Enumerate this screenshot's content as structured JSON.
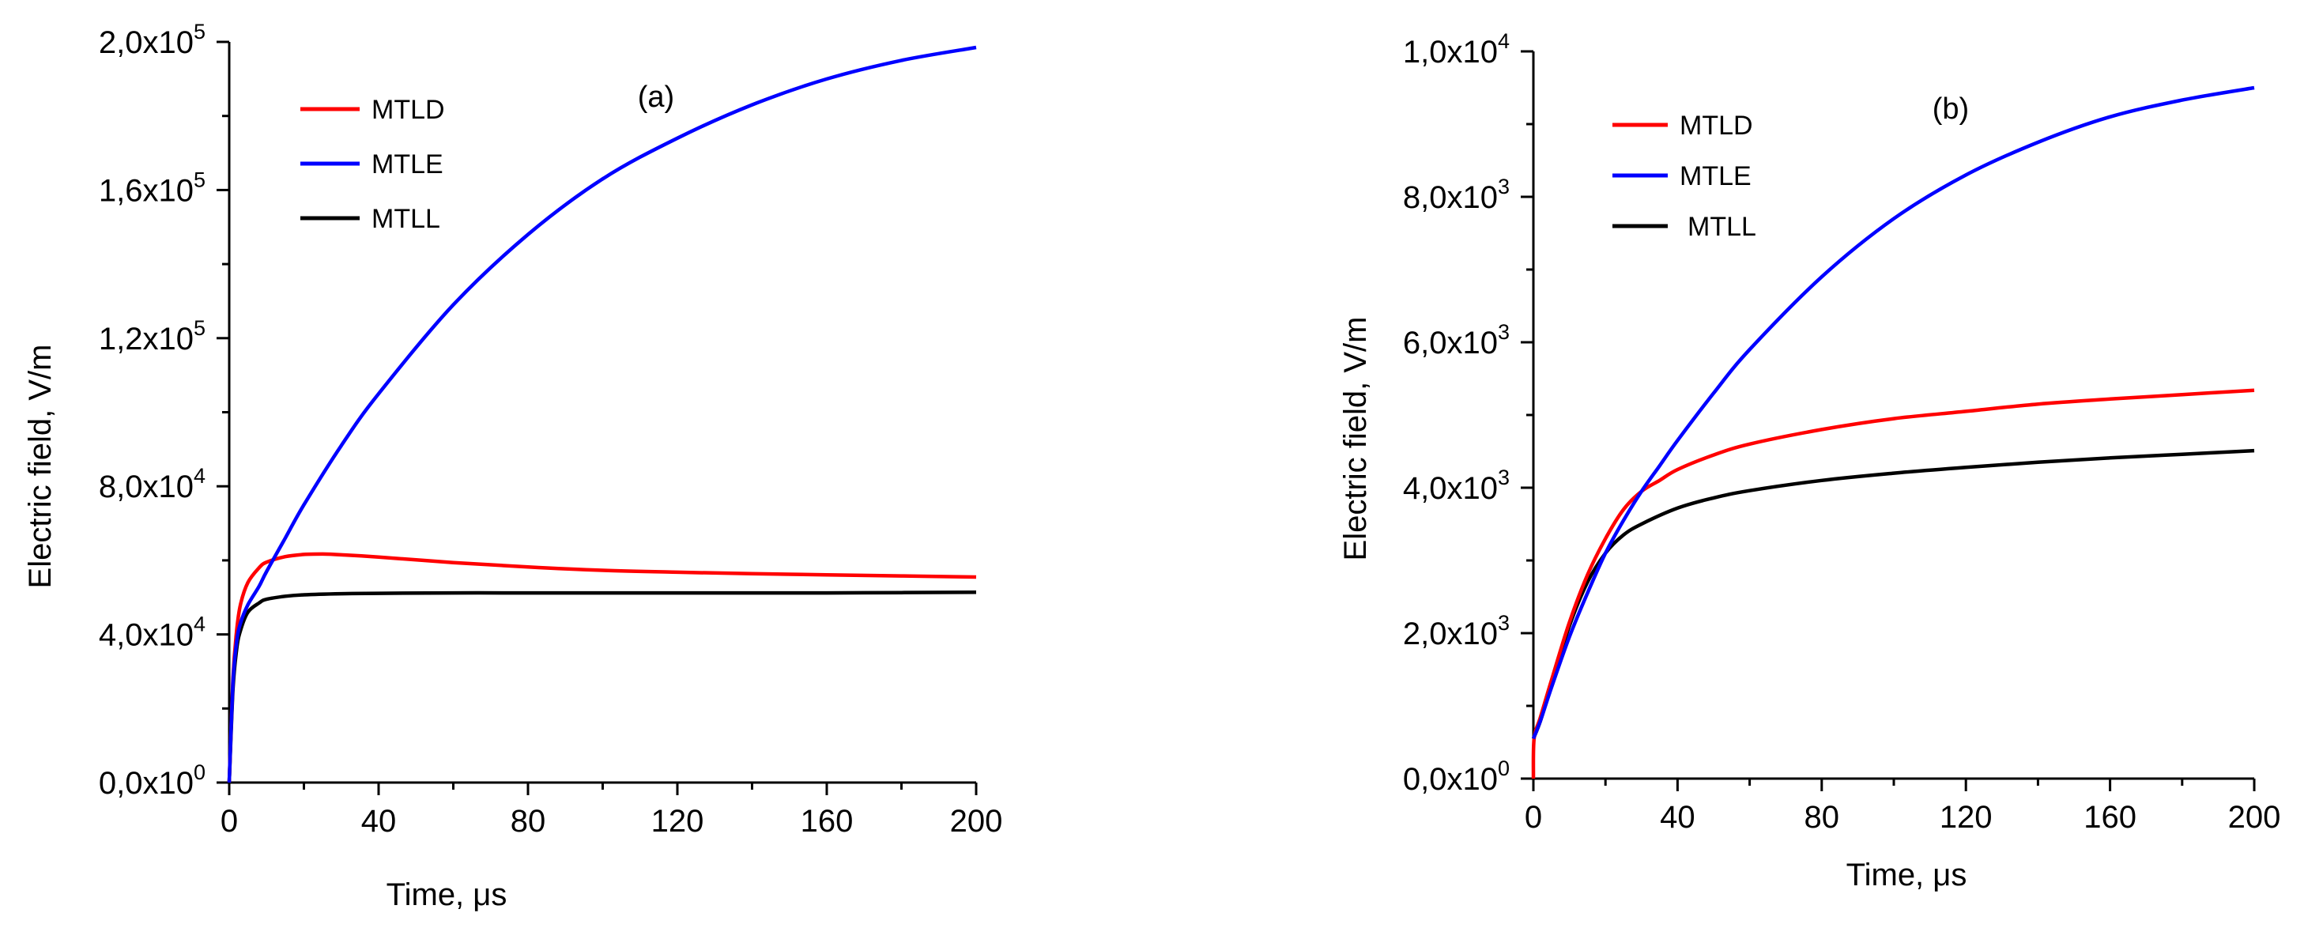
{
  "chart_data": [
    {
      "id": "a",
      "type": "line",
      "panel_label": "(a)",
      "xlabel": "Time, μs",
      "ylabel": "Electric field, V/m",
      "xlim": [
        0,
        200
      ],
      "ylim": [
        0,
        200000
      ],
      "x_ticks": [
        0,
        40,
        80,
        120,
        160,
        200
      ],
      "x_tick_labels": [
        "0",
        "40",
        "80",
        "120",
        "160",
        "200"
      ],
      "y_ticks": [
        0,
        40000,
        80000,
        120000,
        160000,
        200000
      ],
      "y_tick_labels": [
        {
          "mantissa": "0,0x10",
          "exp": "0"
        },
        {
          "mantissa": "4,0x10",
          "exp": "4"
        },
        {
          "mantissa": "8,0x10",
          "exp": "4"
        },
        {
          "mantissa": "1,2x10",
          "exp": "5"
        },
        {
          "mantissa": "1,6x10",
          "exp": "5"
        },
        {
          "mantissa": "2,0x10",
          "exp": "5"
        }
      ],
      "legend_position": "top-left",
      "series": [
        {
          "name": "MTLD",
          "color": "#ff0000",
          "x": [
            0,
            1,
            2,
            3,
            5,
            8,
            10,
            15,
            20,
            25,
            30,
            40,
            60,
            80,
            100,
            120,
            140,
            160,
            180,
            200
          ],
          "y": [
            0,
            28000,
            41000,
            48000,
            54000,
            58000,
            59500,
            61000,
            61600,
            61700,
            61500,
            60900,
            59400,
            58200,
            57300,
            56800,
            56400,
            56100,
            55800,
            55500
          ]
        },
        {
          "name": "MTLE",
          "color": "#0000ff",
          "x": [
            0,
            1,
            2,
            3,
            5,
            8,
            10,
            15,
            20,
            30,
            40,
            60,
            80,
            100,
            120,
            140,
            160,
            180,
            200
          ],
          "y": [
            0,
            27000,
            38000,
            43000,
            48000,
            53000,
            57000,
            66000,
            75000,
            91000,
            105000,
            129000,
            148000,
            163000,
            174000,
            183000,
            190000,
            195000,
            198500
          ]
        },
        {
          "name": "MTLL",
          "color": "#000000",
          "x": [
            0,
            1,
            2,
            3,
            5,
            8,
            10,
            15,
            20,
            30,
            40,
            60,
            80,
            100,
            120,
            140,
            160,
            180,
            200
          ],
          "y": [
            0,
            25000,
            36000,
            41000,
            46000,
            48500,
            49500,
            50300,
            50700,
            51000,
            51100,
            51200,
            51200,
            51200,
            51200,
            51200,
            51200,
            51300,
            51400
          ]
        }
      ]
    },
    {
      "id": "b",
      "type": "line",
      "panel_label": "(b)",
      "xlabel": "Time, μs",
      "ylabel": "Electric field, V/m",
      "xlim": [
        0,
        200
      ],
      "ylim": [
        0,
        10000
      ],
      "x_ticks": [
        0,
        40,
        80,
        120,
        160,
        200
      ],
      "x_tick_labels": [
        "0",
        "40",
        "80",
        "120",
        "160",
        "200"
      ],
      "y_ticks": [
        0,
        2000,
        4000,
        6000,
        8000,
        10000
      ],
      "y_tick_labels": [
        {
          "mantissa": "0,0x10",
          "exp": "0"
        },
        {
          "mantissa": "2,0x10",
          "exp": "3"
        },
        {
          "mantissa": "4,0x10",
          "exp": "3"
        },
        {
          "mantissa": "6,0x10",
          "exp": "3"
        },
        {
          "mantissa": "8,0x10",
          "exp": "3"
        },
        {
          "mantissa": "1,0x10",
          "exp": "4"
        }
      ],
      "legend_position": "top-left",
      "series": [
        {
          "name": "MTLD",
          "color": "#ff0000",
          "x": [
            0,
            0.2,
            2,
            5,
            10,
            15,
            20,
            25,
            30,
            35,
            40,
            50,
            60,
            80,
            100,
            120,
            140,
            160,
            180,
            200
          ],
          "y": [
            0,
            550,
            850,
            1350,
            2150,
            2800,
            3300,
            3700,
            3950,
            4100,
            4250,
            4450,
            4600,
            4800,
            4950,
            5050,
            5150,
            5220,
            5280,
            5340
          ]
        },
        {
          "name": "MTLE",
          "color": "#0000ff",
          "x": [
            0,
            2,
            5,
            10,
            15,
            20,
            25,
            30,
            35,
            40,
            50,
            60,
            80,
            100,
            120,
            140,
            160,
            180,
            200
          ],
          "y": [
            550,
            800,
            1250,
            1950,
            2550,
            3100,
            3550,
            3950,
            4300,
            4650,
            5300,
            5900,
            6900,
            7700,
            8300,
            8750,
            9100,
            9330,
            9500
          ]
        },
        {
          "name": "MTLL",
          "color": "#000000",
          "x": [
            0,
            2,
            5,
            10,
            15,
            20,
            25,
            30,
            40,
            50,
            60,
            80,
            100,
            120,
            140,
            160,
            180,
            200
          ],
          "y": [
            550,
            800,
            1300,
            2100,
            2700,
            3100,
            3350,
            3500,
            3720,
            3860,
            3960,
            4100,
            4200,
            4280,
            4350,
            4410,
            4460,
            4510
          ]
        }
      ]
    }
  ]
}
